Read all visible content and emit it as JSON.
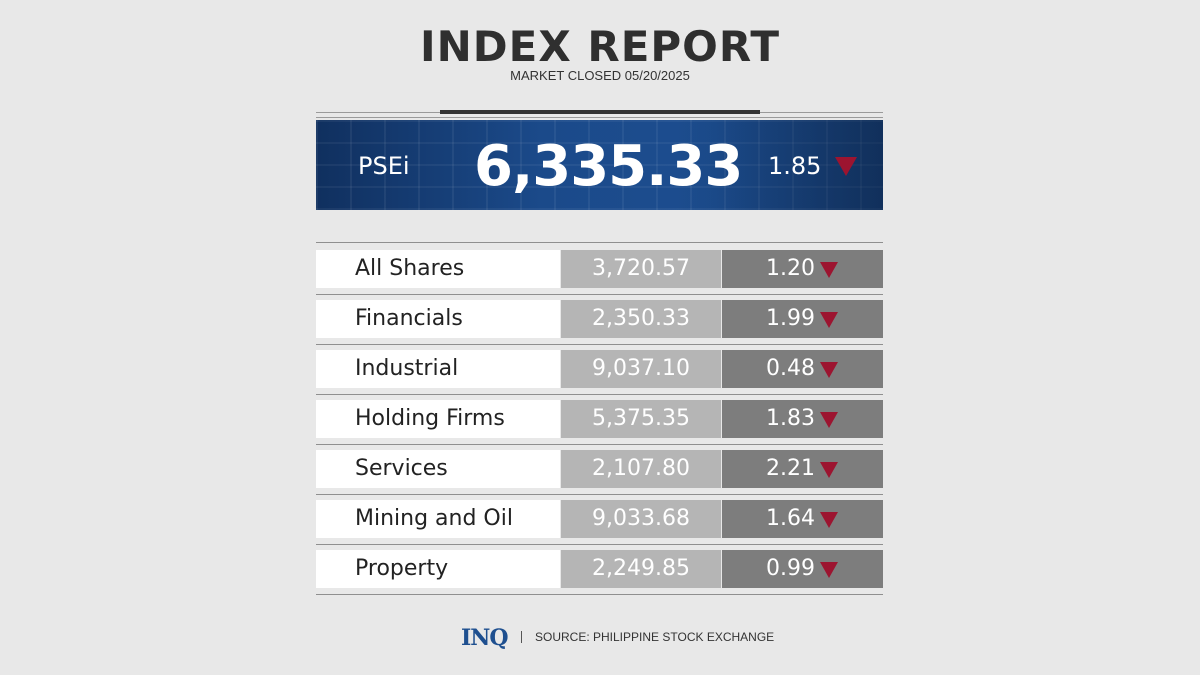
{
  "header": {
    "title": "INDEX REPORT",
    "subtitle": "MARKET CLOSED 05/20/2025"
  },
  "headline": {
    "label": "PSEi",
    "value": "6,335.33",
    "change": "1.85",
    "direction": "down",
    "down_color": "#9c1430"
  },
  "sectors": [
    {
      "name": "All Shares",
      "value": "3,720.57",
      "change": "1.20",
      "direction": "down"
    },
    {
      "name": "Financials",
      "value": "2,350.33",
      "change": "1.99",
      "direction": "down"
    },
    {
      "name": "Industrial",
      "value": "9,037.10",
      "change": "0.48",
      "direction": "down"
    },
    {
      "name": "Holding Firms",
      "value": "5,375.35",
      "change": "1.83",
      "direction": "down"
    },
    {
      "name": "Services",
      "value": "2,107.80",
      "change": "2.21",
      "direction": "down"
    },
    {
      "name": "Mining and Oil",
      "value": "9,033.68",
      "change": "1.64",
      "direction": "down"
    },
    {
      "name": "Property",
      "value": "2,249.85",
      "change": "0.99",
      "direction": "down"
    }
  ],
  "footer": {
    "logo": "INQ",
    "source": "SOURCE: PHILIPPINE STOCK EXCHANGE"
  }
}
